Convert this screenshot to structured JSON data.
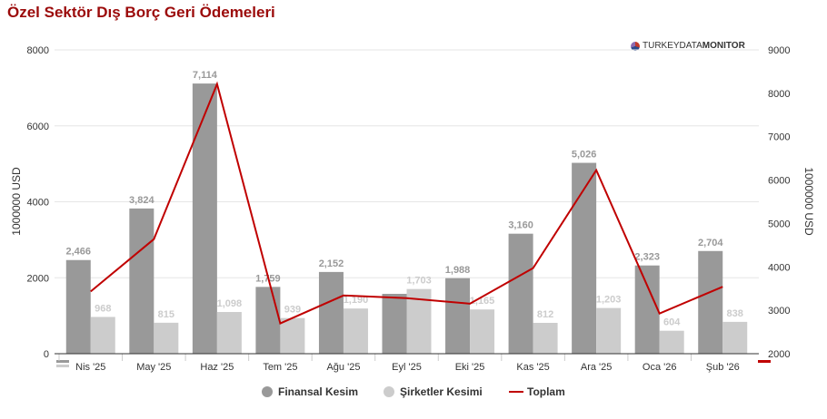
{
  "title": "Özel Sektör Dış Borç Geri Ödemeleri",
  "logo": {
    "part1": "TURKEYDATA",
    "part2": "MONITOR"
  },
  "chart_data": {
    "type": "bar",
    "title": "Özel Sektör Dış Borç Geri Ödemeleri",
    "categories": [
      "Nis '25",
      "May '25",
      "Haz '25",
      "Tem '25",
      "Ağu '25",
      "Eyl '25",
      "Eki '25",
      "Kas '25",
      "Ara '25",
      "Oca '26",
      "Şub '26"
    ],
    "series": [
      {
        "name": "Finansal Kesim",
        "type": "bar",
        "axis": "left",
        "color": "#999999",
        "values": [
          2466,
          3824,
          7114,
          1759,
          2152,
          1576,
          1988,
          3160,
          5026,
          2323,
          2704
        ],
        "labels": [
          "2,466",
          "3,824",
          "7,114",
          "1,759",
          "2,152",
          null,
          "1,988",
          "3,160",
          "5,026",
          "2,323",
          "2,704"
        ]
      },
      {
        "name": "Şirketler Kesimi",
        "type": "bar",
        "axis": "left",
        "color": "#cccccc",
        "values": [
          968,
          815,
          1098,
          939,
          1190,
          1703,
          1165,
          812,
          1203,
          604,
          838
        ],
        "labels": [
          "968",
          "815",
          "1,098",
          "939",
          "1,190",
          "1,703",
          "1,165",
          "812",
          "1,203",
          "604",
          "838"
        ]
      },
      {
        "name": "Toplam",
        "type": "line",
        "axis": "right",
        "color": "#c00000",
        "values": [
          3434,
          4639,
          8212,
          2698,
          3342,
          3279,
          3153,
          3972,
          6229,
          2927,
          3542
        ]
      }
    ],
    "ylabel": "1000000 USD",
    "y2label": "1000000 USD",
    "ylim": [
      0,
      8000
    ],
    "y2lim": [
      2000,
      9000
    ],
    "yticks": [
      "0",
      "2000",
      "4000",
      "6000",
      "8000"
    ],
    "y2ticks": [
      "2000",
      "3000",
      "4000",
      "5000",
      "6000",
      "7000",
      "8000",
      "9000"
    ],
    "legend": "bottom"
  }
}
